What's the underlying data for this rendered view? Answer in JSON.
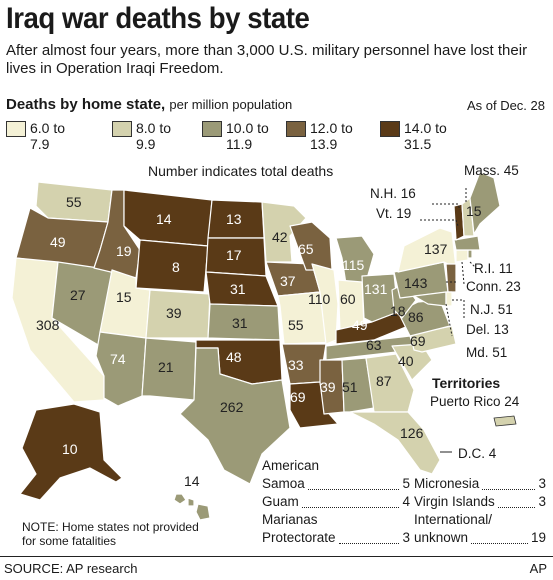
{
  "header": {
    "title": "Iraq war deaths by state",
    "subtitle": "After almost four years, more than 3,000 U.S. military personnel have lost their lives in Operation Iraqi Freedom."
  },
  "legend": {
    "title": "Deaths by home state,",
    "title_sub": "per million population",
    "as_of": "As of Dec. 28",
    "note": "Number indicates total deaths",
    "bins": [
      {
        "from": "6.0 to",
        "to": "7.9",
        "color": "#f4f1d6"
      },
      {
        "from": "8.0 to",
        "to": "9.9",
        "color": "#d4d2ae"
      },
      {
        "from": "10.0 to",
        "to": "11.9",
        "color": "#9b9a77"
      },
      {
        "from": "12.0 to",
        "to": "13.9",
        "color": "#7a6240"
      },
      {
        "from": "14.0 to",
        "to": "31.5",
        "color": "#5a3a17"
      }
    ]
  },
  "map_values": {
    "WA": "55",
    "OR": "49",
    "CA": "308",
    "NV": "27",
    "ID": "19",
    "MT": "14",
    "WY": "8",
    "UT": "15",
    "AZ": "74",
    "CO": "39",
    "NM": "21",
    "ND": "13",
    "SD": "17",
    "NE": "31",
    "KS": "31",
    "OK": "48",
    "TX": "262",
    "MN": "42",
    "IA": "37",
    "MO": "55",
    "AR": "33",
    "LA": "69",
    "WI": "65",
    "IL": "110",
    "MI": "115",
    "IN": "60",
    "OH": "131",
    "KY": "49",
    "TN": "63",
    "MS": "39",
    "AL": "51",
    "GA": "87",
    "FL": "126",
    "SC": "40",
    "NC": "69",
    "VA": "86",
    "WV": "18",
    "PA": "143",
    "NY": "137",
    "ME": "15",
    "AK": "10",
    "HI": "14"
  },
  "callouts": {
    "mass": "Mass. 45",
    "nh": "N.H. 16",
    "vt": "Vt. 19",
    "ri": "R.I. 11",
    "conn": "Conn. 23",
    "nj": "N.J. 51",
    "del": "Del. 13",
    "md": "Md. 51"
  },
  "territories": {
    "title": "Territories",
    "puerto_rico": "Puerto Rico 24",
    "dc": "D.C. 4",
    "left": [
      {
        "name": "American",
        "value": ""
      },
      {
        "name": "Samoa",
        "value": "5"
      },
      {
        "name": "Guam",
        "value": "4"
      },
      {
        "name": "Marianas",
        "value": ""
      },
      {
        "name": "Protectorate",
        "value": "3"
      }
    ],
    "right": [
      {
        "name": "Micronesia",
        "value": "3"
      },
      {
        "name": "Virgin Islands",
        "value": "3"
      },
      {
        "name": "International/",
        "value": ""
      },
      {
        "name": "unknown",
        "value": "19"
      }
    ]
  },
  "footer": {
    "note": "NOTE: Home states not provided for some fatalities",
    "source": "SOURCE: AP research",
    "credit": "AP"
  }
}
